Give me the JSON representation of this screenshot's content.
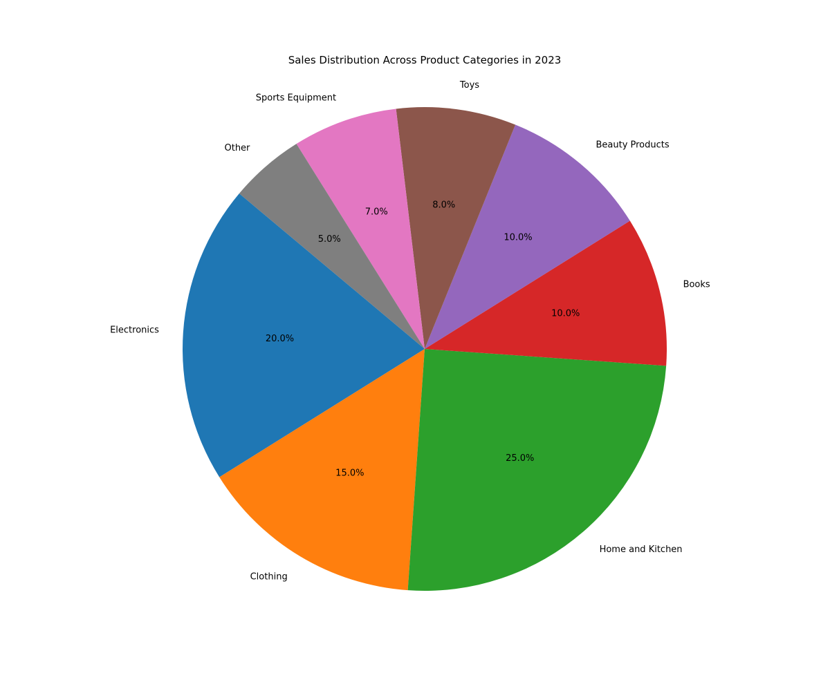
{
  "chart_data": {
    "type": "pie",
    "title": "Sales Distribution Across Product Categories in 2023",
    "categories": [
      "Electronics",
      "Clothing",
      "Home and Kitchen",
      "Books",
      "Beauty Products",
      "Toys",
      "Sports Equipment",
      "Other"
    ],
    "values": [
      20,
      15,
      25,
      10,
      10,
      8,
      7,
      5
    ],
    "value_labels": [
      "20.0%",
      "15.0%",
      "25.0%",
      "10.0%",
      "10.0%",
      "8.0%",
      "7.0%",
      "5.0%"
    ],
    "colors": [
      "#1f77b4",
      "#ff7f0e",
      "#2ca02c",
      "#d62728",
      "#9467bd",
      "#8c564b",
      "#e377c2",
      "#7f7f7f"
    ],
    "start_angle_deg": 140,
    "direction": "counterclockwise",
    "legend": "none"
  }
}
